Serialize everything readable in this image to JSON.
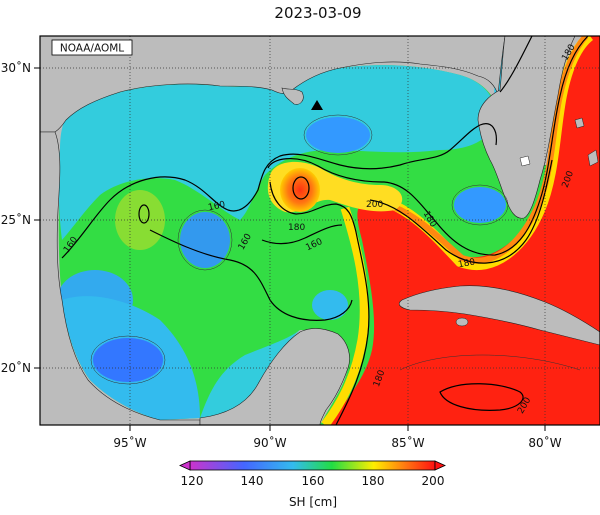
{
  "title": "2023-03-09",
  "credit": "NOAA/AOML",
  "colorbar": {
    "label": "SH [cm]",
    "ticks": [
      "120",
      "140",
      "160",
      "180",
      "200"
    ],
    "stops": [
      "#cc33cc",
      "#4466ff",
      "#33bbee",
      "#22dd44",
      "#ffee00",
      "#ff7711",
      "#ff1111"
    ]
  },
  "axes": {
    "lon_labels": [
      "95˚W",
      "90˚W",
      "85˚W",
      "80˚W"
    ],
    "lat_labels": [
      "30˚N",
      "25˚N",
      "20˚N"
    ]
  },
  "contour_labels": [
    "160",
    "160",
    "160",
    "160",
    "180",
    "180",
    "180",
    "180",
    "180",
    "200",
    "200",
    "200"
  ],
  "marker": "black-triangle",
  "colors": {
    "land": "#bcbcbc",
    "ocean_low": "#33bbee",
    "ocean_mid": "#33dd44",
    "ocean_high": "#ff2211",
    "eddy": "#ff4411",
    "contour": "#000000"
  }
}
